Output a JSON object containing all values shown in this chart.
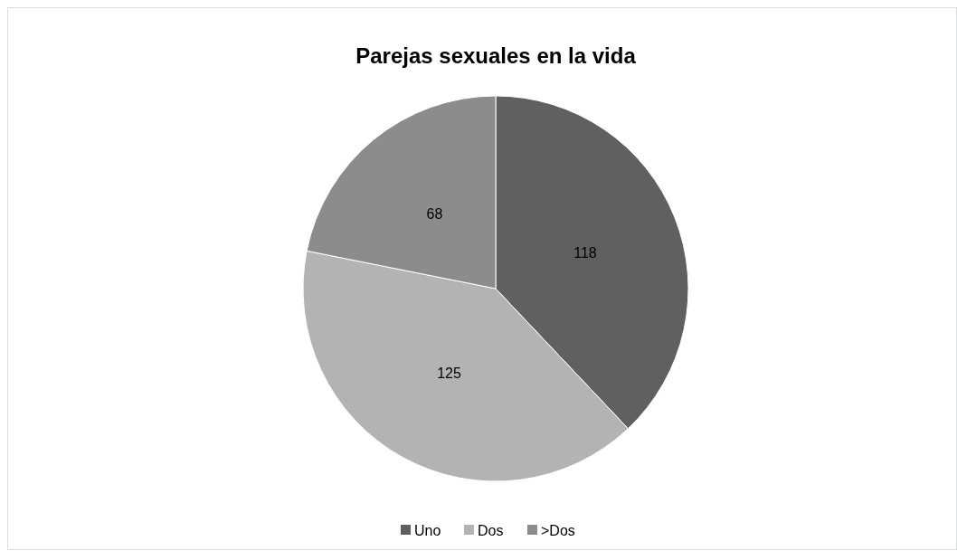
{
  "chart_data": {
    "type": "pie",
    "title": "Parejas sexuales en la vida",
    "categories": [
      "Uno",
      "Dos",
      ">Dos"
    ],
    "values": [
      118,
      125,
      68
    ],
    "colors": [
      "#606060",
      "#b3b3b3",
      "#8c8c8c"
    ],
    "data_labels": true,
    "legend": "bottom"
  }
}
